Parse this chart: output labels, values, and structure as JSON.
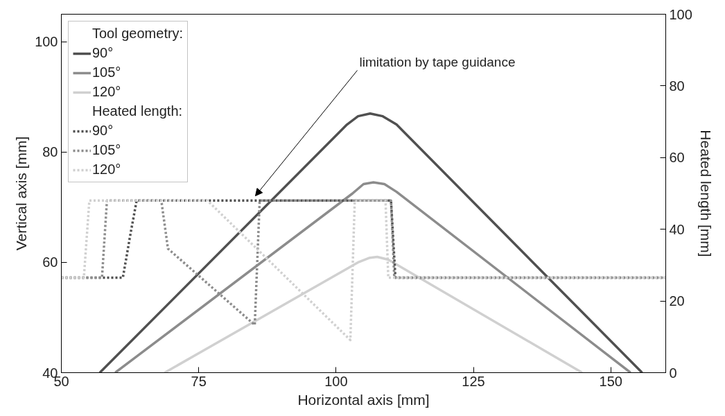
{
  "chart_data": {
    "type": "line",
    "xlabel": "Horizontal axis [mm]",
    "ylabel": "Vertical axis [mm]",
    "y2label": "Heated length [mm]",
    "legend_title": [
      "Tool geometry:",
      "Heated length:"
    ],
    "xlim": [
      50,
      160
    ],
    "xticks": [
      50,
      75,
      100,
      125,
      150
    ],
    "ylim": [
      40,
      105
    ],
    "yticks": [
      40,
      60,
      80,
      100
    ],
    "y2lim": [
      0,
      100
    ],
    "y2ticks": [
      0,
      20,
      40,
      60,
      80,
      100
    ],
    "series": [
      {
        "name": "90°",
        "color": "#505050",
        "line_style": "solid",
        "x": [
          57,
          102,
          104,
          106.2,
          108.5,
          111,
          155.7
        ],
        "values": [
          40,
          85,
          86.5,
          87,
          86.5,
          85,
          40
        ]
      },
      {
        "name": "105°",
        "color": "#8c8c8c",
        "line_style": "solid",
        "x": [
          59.8,
          103,
          105,
          106.8,
          108.8,
          111,
          153.6
        ],
        "values": [
          40,
          72.5,
          74.2,
          74.5,
          74.2,
          72.8,
          40
        ]
      },
      {
        "name": "120°",
        "color": "#d0d0d0",
        "line_style": "solid",
        "x": [
          68.8,
          104,
          106,
          107.5,
          109.5,
          144.8
        ],
        "values": [
          40,
          60,
          60.8,
          61,
          60.5,
          40
        ]
      },
      {
        "name": "90°",
        "color": "#505050",
        "line_style": "dotted",
        "axis": "y2",
        "x": [
          50,
          61.2,
          62.5,
          63.7,
          110,
          110.8,
          160
        ],
        "values": [
          26.5,
          26.5,
          38,
          48,
          48,
          26.5,
          26.5
        ]
      },
      {
        "name": "105°",
        "color": "#8c8c8c",
        "line_style": "dotted",
        "axis": "y2",
        "x": [
          50,
          57.4,
          58.3,
          68.2,
          69.4,
          85.2,
          86.1,
          110,
          110.6,
          160
        ],
        "values": [
          26.5,
          26.5,
          48,
          48,
          34.6,
          13.3,
          48,
          48,
          26.5,
          26.5
        ]
      },
      {
        "name": "120°",
        "color": "#d0d0d0",
        "line_style": "dotted",
        "axis": "y2",
        "x": [
          50,
          54.1,
          55.1,
          76.6,
          102.6,
          103.4,
          109,
          109.5,
          160
        ],
        "values": [
          26.5,
          26.5,
          48,
          48,
          9.1,
          48,
          48,
          26.5,
          26.5
        ]
      }
    ],
    "annotations": [
      "limitation by tape guidance"
    ],
    "legend": "top left",
    "grid": false
  }
}
